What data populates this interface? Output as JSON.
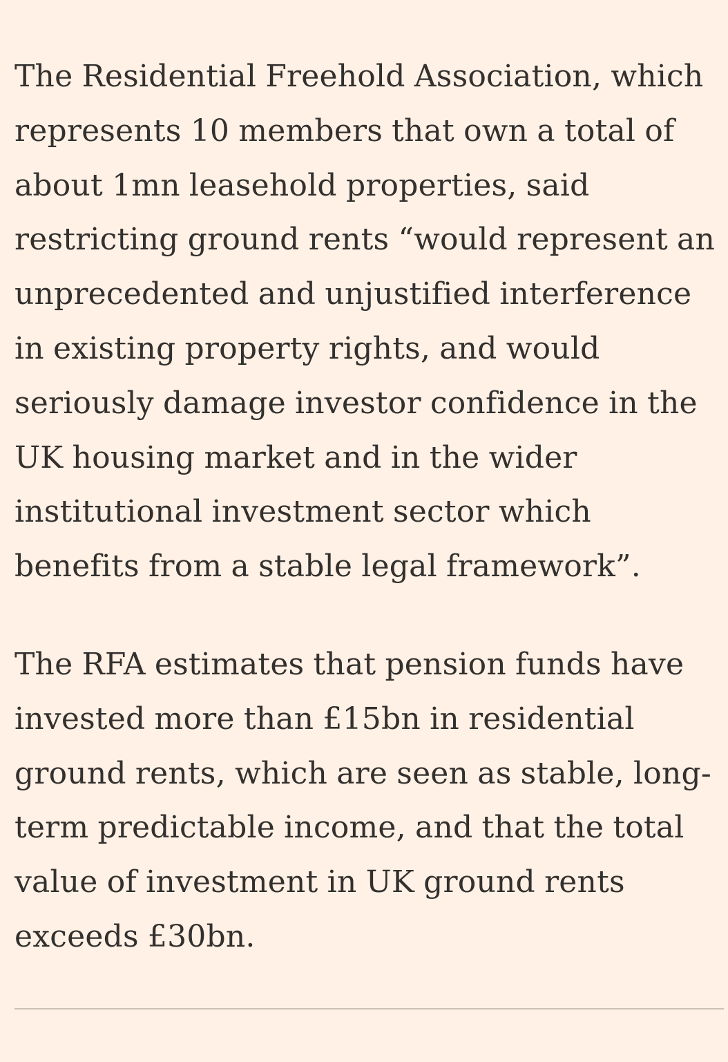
{
  "article": {
    "paragraphs": [
      {
        "lines": [
          "The Residential Freehold Association, which",
          "represents 10 members that own a total of",
          "about 1mn leasehold properties, said",
          "restricting ground rents “would represent an",
          "unprecedented and unjustified interference",
          "in existing property rights, and would",
          "seriously damage investor confidence in the",
          "UK housing market and in the wider",
          "institutional investment sector which",
          "benefits from a stable legal framework”."
        ]
      },
      {
        "lines": [
          "The RFA estimates that pension funds have",
          "invested more than £15bn in residential",
          "ground rents, which are seen as stable, long-",
          "term predictable income, and that the total",
          "value of investment in UK ground rents",
          "exceeds £30bn."
        ]
      }
    ]
  },
  "colors": {
    "background": "#fff1e5",
    "text": "#33302e",
    "divider": "#ccc1b7"
  }
}
